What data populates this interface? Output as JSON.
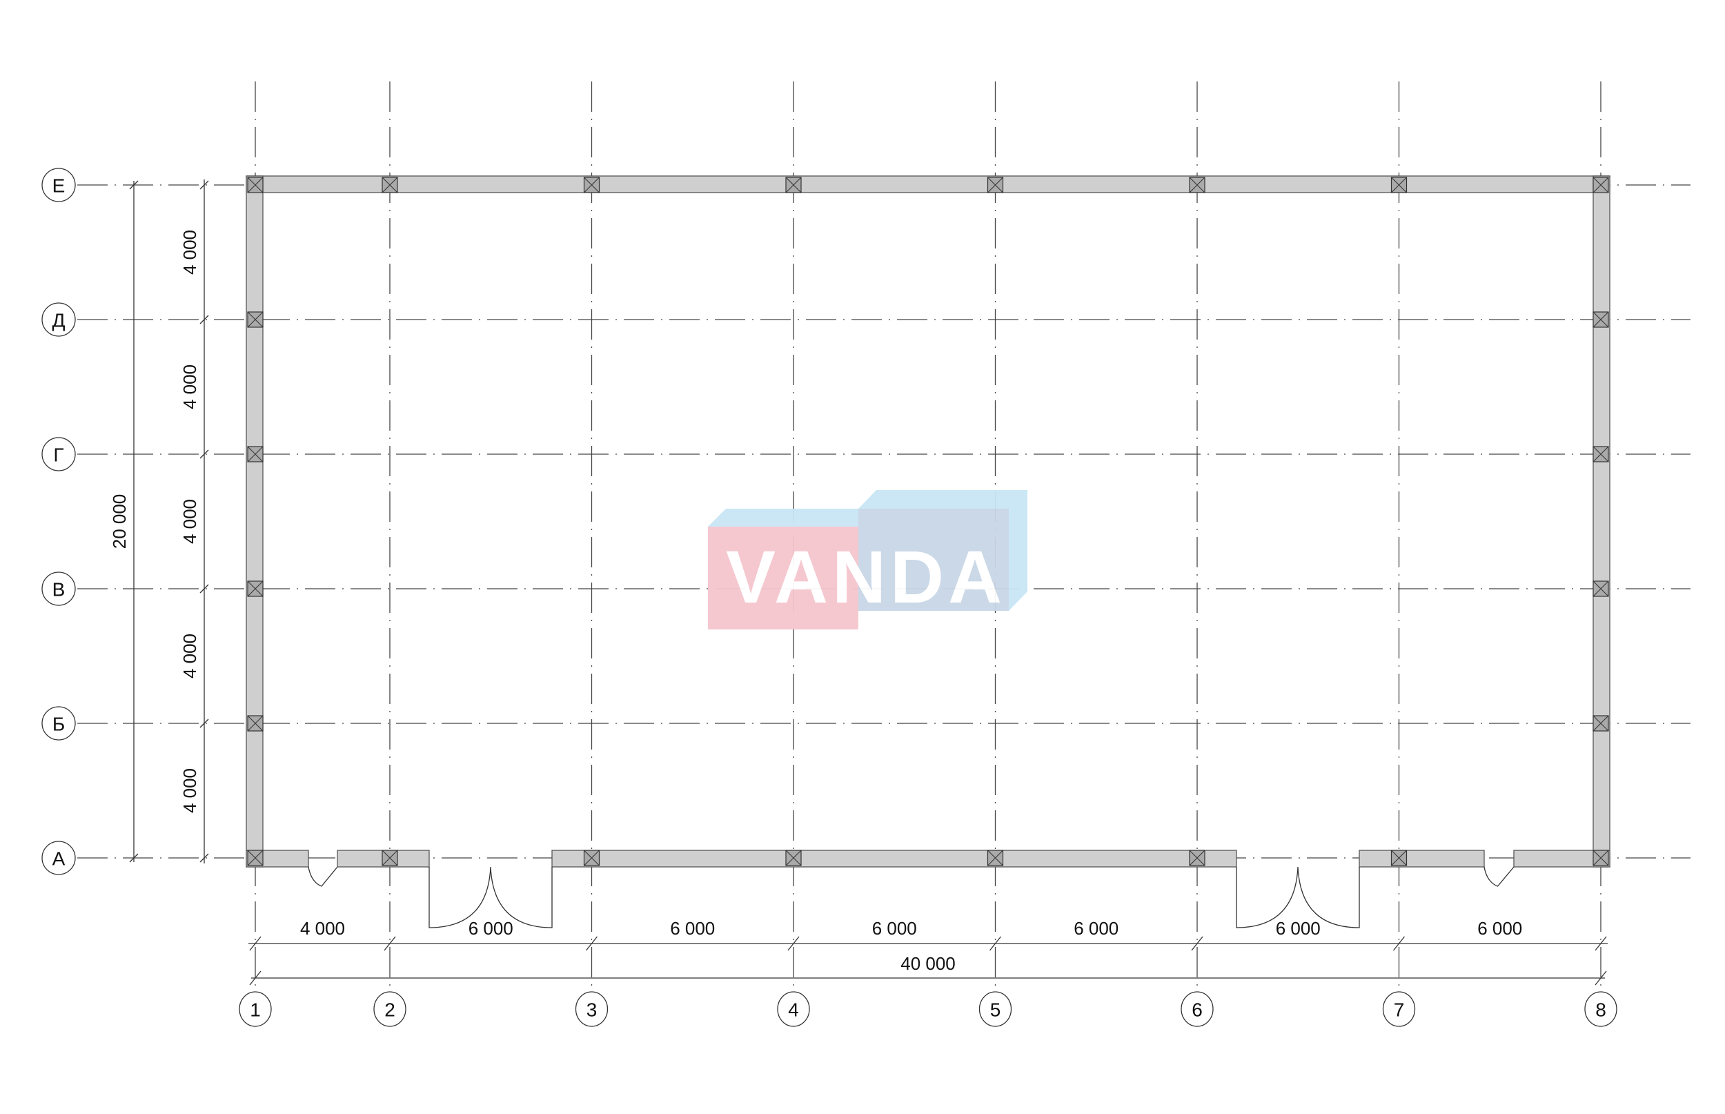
{
  "plan": {
    "column_axes": [
      "1",
      "2",
      "3",
      "4",
      "5",
      "6",
      "7",
      "8"
    ],
    "column_spacings_mm": [
      4000,
      6000,
      6000,
      6000,
      6000,
      6000,
      6000
    ],
    "column_dim_labels": [
      "4 000",
      "6 000",
      "6 000",
      "6 000",
      "6 000",
      "6 000",
      "6 000"
    ],
    "total_width_label": "40 000",
    "row_axes_top_to_bottom": [
      "Е",
      "Д",
      "Г",
      "В",
      "Б",
      "А"
    ],
    "row_spacings_mm": [
      4000,
      4000,
      4000,
      4000,
      4000
    ],
    "row_dim_labels": [
      "4 000",
      "4 000",
      "4 000",
      "4 000",
      "4 000"
    ],
    "total_depth_label": "20 000",
    "wall_color": "#cfcfcf"
  },
  "watermark": {
    "text": "VANDA",
    "pink": "#f5c6ce",
    "light_blue": "#c9e6f5",
    "grey_blue": "#c9d6e6"
  }
}
